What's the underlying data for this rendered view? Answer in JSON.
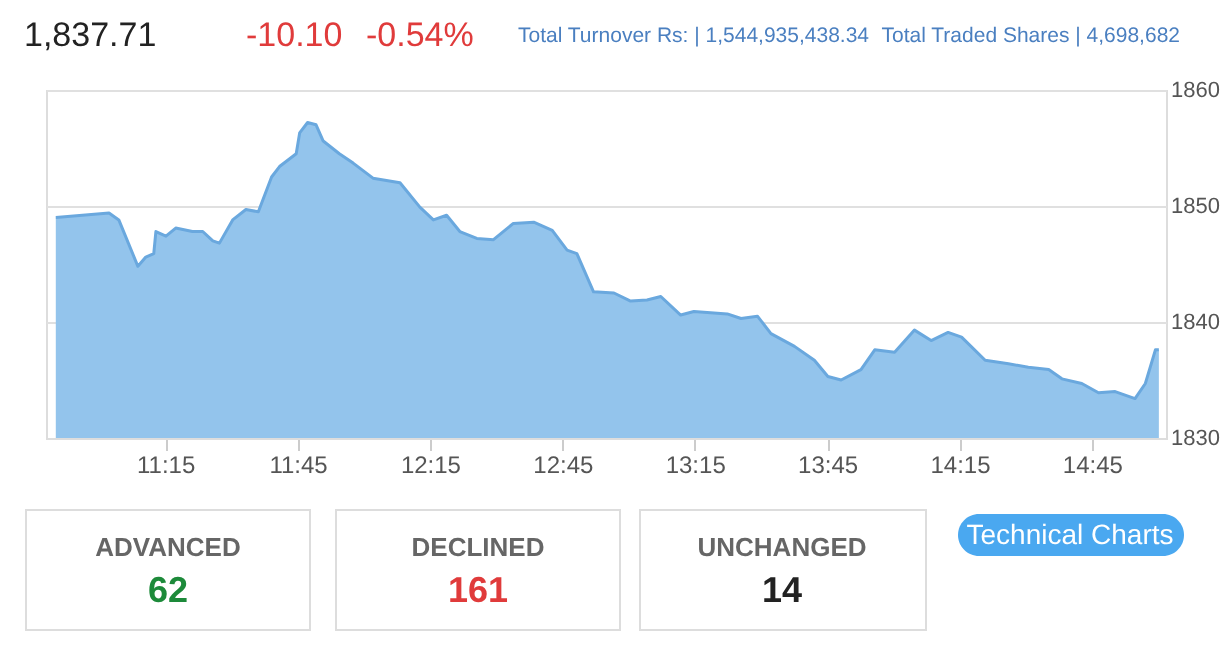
{
  "chart_data": {
    "type": "area",
    "x": [
      10.837,
      11.038,
      11.075,
      11.147,
      11.177,
      11.207,
      11.215,
      11.253,
      11.29,
      11.353,
      11.392,
      11.43,
      11.455,
      11.505,
      11.555,
      11.602,
      11.652,
      11.682,
      11.745,
      11.758,
      11.788,
      11.82,
      11.847,
      11.908,
      11.96,
      12.035,
      12.137,
      12.212,
      12.263,
      12.313,
      12.363,
      12.427,
      12.49,
      12.565,
      12.642,
      12.712,
      12.768,
      12.805,
      12.868,
      12.945,
      13.008,
      13.07,
      13.122,
      13.197,
      13.247,
      13.373,
      13.425,
      13.487,
      13.538,
      13.627,
      13.702,
      13.753,
      13.803,
      13.878,
      13.93,
      14.005,
      14.08,
      14.143,
      14.207,
      14.258,
      14.347,
      14.435,
      14.51,
      14.587,
      14.637,
      14.712,
      14.775,
      14.838,
      14.913,
      14.952,
      14.99,
      15.003
    ],
    "series": [
      {
        "color": "#93c4ec",
        "values": [
          1849.0,
          1849.4,
          1848.8,
          1844.8,
          1845.6,
          1845.9,
          1847.8,
          1847.4,
          1848.1,
          1847.8,
          1847.8,
          1847.0,
          1846.8,
          1848.8,
          1849.7,
          1849.5,
          1852.5,
          1853.4,
          1854.5,
          1856.3,
          1857.2,
          1857.0,
          1855.6,
          1854.5,
          1853.7,
          1852.4,
          1852.0,
          1849.9,
          1848.8,
          1849.2,
          1847.8,
          1847.2,
          1847.1,
          1848.5,
          1848.6,
          1847.9,
          1846.2,
          1845.9,
          1842.6,
          1842.5,
          1841.8,
          1841.9,
          1842.2,
          1840.6,
          1840.9,
          1840.7,
          1840.3,
          1840.5,
          1839.0,
          1837.9,
          1836.7,
          1835.3,
          1835.0,
          1835.9,
          1837.6,
          1837.4,
          1839.3,
          1838.4,
          1839.1,
          1838.7,
          1836.7,
          1836.4,
          1836.1,
          1835.9,
          1835.1,
          1834.7,
          1833.9,
          1834.0,
          1833.4,
          1834.7,
          1837.6,
          1837.6
        ]
      }
    ],
    "xlim": [
      10.8,
      15.03
    ],
    "xticks": [
      {
        "value": 11.25,
        "label": "11:15"
      },
      {
        "value": 11.75,
        "label": "11:45"
      },
      {
        "value": 12.25,
        "label": "12:15"
      },
      {
        "value": 12.75,
        "label": "12:45"
      },
      {
        "value": 13.25,
        "label": "13:15"
      },
      {
        "value": 13.75,
        "label": "13:45"
      },
      {
        "value": 14.25,
        "label": "14:15"
      },
      {
        "value": 14.75,
        "label": "14:45"
      }
    ],
    "ylim": [
      1830,
      1860
    ],
    "yticks": [
      1830,
      1840,
      1850,
      1860
    ],
    "grid": "y",
    "annotations": [
      "1,837.71",
      "-10.10",
      "-0.54%",
      "Total Turnover Rs: | 1,544,935,438.34",
      "Total Traded Shares | 4,698,682",
      "ADVANCED",
      "62",
      "DECLINED",
      "161",
      "UNCHANGED",
      "14",
      "Technical Charts"
    ]
  }
}
